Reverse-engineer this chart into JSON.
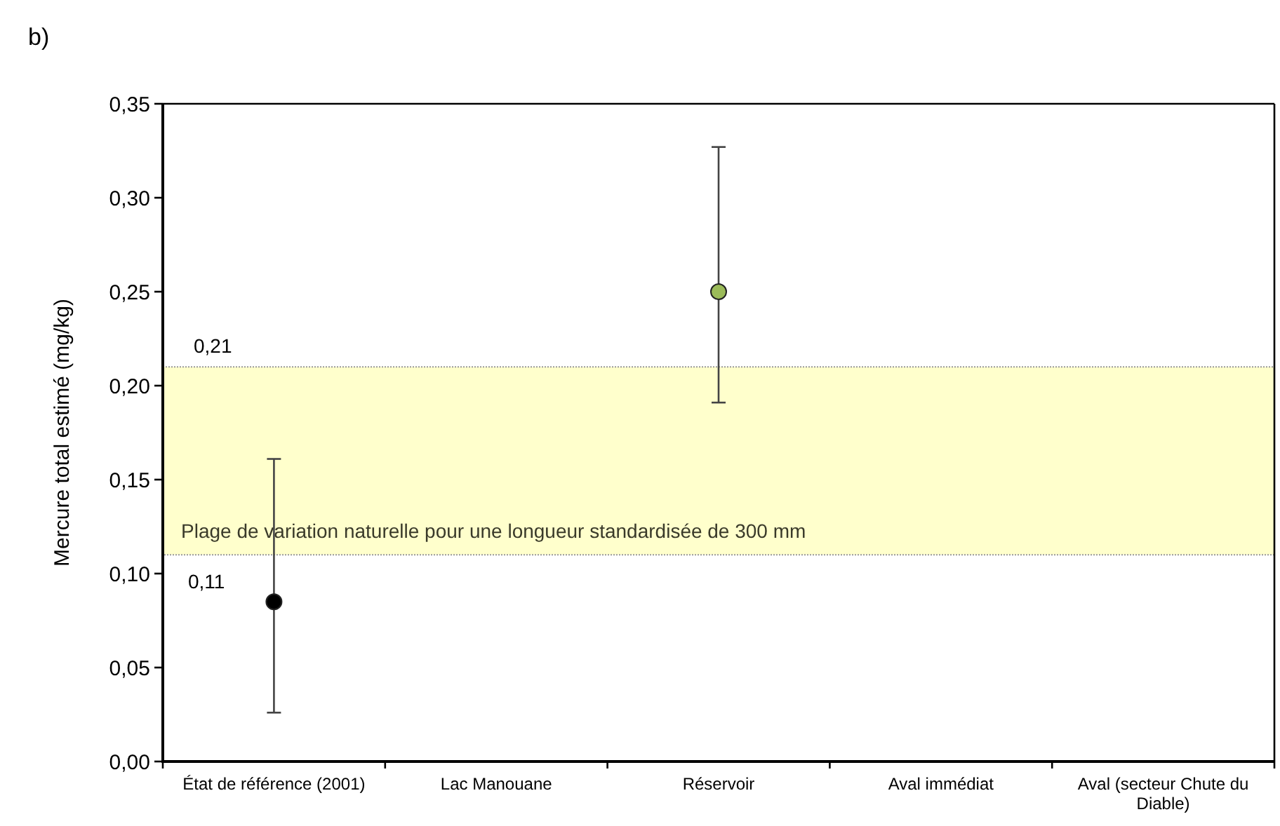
{
  "chart_data": {
    "type": "scatter",
    "title": "b)",
    "ylabel": "Mercure total estimé (mg/kg)",
    "categories": [
      "État de référence (2001)",
      "Lac Manouane",
      "Réservoir",
      "Aval immédiat",
      "Aval (secteur Chute du Diable)"
    ],
    "values": [
      0.085,
      null,
      0.25,
      null,
      null
    ],
    "colors": [
      "#000000",
      null,
      "#9bbb59",
      null,
      null
    ],
    "errors": [
      [
        0.026,
        0.161
      ],
      null,
      [
        0.191,
        0.327
      ],
      null,
      null
    ],
    "marker": "circle",
    "ylim": [
      0,
      0.35
    ],
    "yticks": [
      {
        "value": 0,
        "label": "0,00"
      },
      {
        "value": 0.05,
        "label": "0,05"
      },
      {
        "value": 0.1,
        "label": "0,10"
      },
      {
        "value": 0.15,
        "label": "0,15"
      },
      {
        "value": 0.2,
        "label": "0,20"
      },
      {
        "value": 0.25,
        "label": "0,25"
      },
      {
        "value": 0.3,
        "label": "0,30"
      },
      {
        "value": 0.35,
        "label": "0,35"
      }
    ],
    "bands": [
      {
        "axis": "y",
        "from": 0.11,
        "to": 0.21,
        "label": "Plage de variation naturelle pour une longueur standardisée de 300 mm",
        "color": "#ffffcc"
      }
    ],
    "annotations": [
      {
        "text": "0,21",
        "y": 0.21
      },
      {
        "text": "0,11",
        "y": 0.11
      }
    ]
  }
}
